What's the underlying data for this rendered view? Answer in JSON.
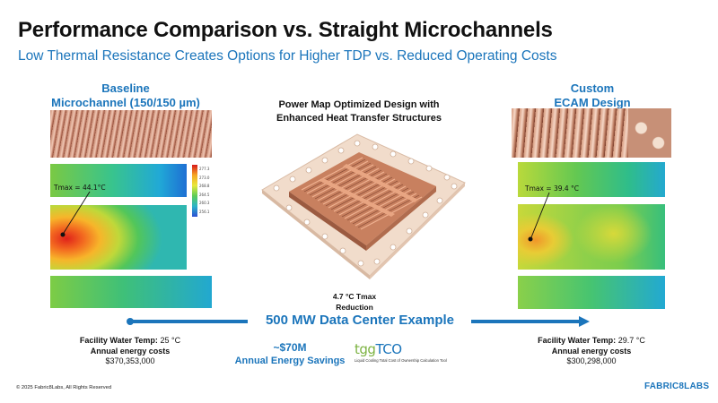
{
  "slide": {
    "title": "Performance Comparison vs. Straight Microchannels",
    "subtitle": "Low Thermal Resistance Creates Options for Higher TDP vs. Reduced Operating Costs"
  },
  "left": {
    "heading_line1": "Baseline",
    "heading_line2": "Microchannel (150/150 µm)",
    "tmax": "Tmax = 44.1°C",
    "colorbar_ticks": [
      "277.3",
      "",
      "273.0",
      "",
      "268.8",
      "",
      "264.5",
      "",
      "260.3",
      "",
      "256.1"
    ],
    "water_temp_label": "Facility Water Temp:",
    "water_temp_value": "25 °C",
    "energy_label": "Annual energy costs",
    "energy_value": "$370,353,000"
  },
  "center": {
    "heading_line1": "Power Map Optimized Design with",
    "heading_line2": "Enhanced Heat Transfer Structures",
    "reduction_line1": "4.7 °C Tmax",
    "reduction_line2": "Reduction",
    "banner": "500 MW Data Center Example",
    "savings_amount": "~$70M",
    "savings_label": "Annual Energy Savings",
    "tgg_logo_part1": "tgg",
    "tgg_logo_part2": "TCO",
    "tgg_tagline": "Liquid Cooling Total Cost of Ownership Calculation Tool"
  },
  "right": {
    "heading_line1": "Custom",
    "heading_line2": "ECAM Design",
    "tmax": "Tmax = 39.4 °C",
    "water_temp_label": "Facility Water Temp:",
    "water_temp_value": "29.7 °C",
    "energy_label": "Annual energy costs",
    "energy_value": "$300,298,000"
  },
  "footer": {
    "copyright": "© 2025 Fabric8Labs, All Rights Reserved",
    "brand": "FABRIC8LABS"
  },
  "colors": {
    "accent": "#1b75bb",
    "tgg_green": "#7cb342",
    "copper": "#c8805f"
  }
}
